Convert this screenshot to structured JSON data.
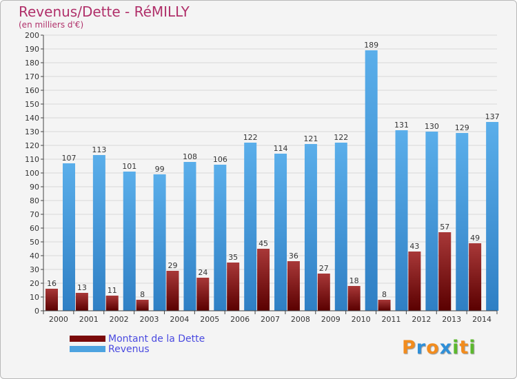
{
  "header": {
    "title": "Revenus/Dette - RéMILLY",
    "subtitle": "(en milliers d'€)"
  },
  "legend": {
    "items": [
      {
        "label": "Montant de la Dette",
        "color": "#7a0a0a"
      },
      {
        "label": "Revenus",
        "color": "#4da3e0"
      }
    ]
  },
  "logo": {
    "letters": [
      "P",
      "r",
      "o",
      "x",
      "i",
      "t",
      "i"
    ],
    "colors": [
      "#f28c1e",
      "#2f8fd8",
      "#f28c1e",
      "#2f8fd8",
      "#5cb82e",
      "#f28c1e",
      "#5cb82e"
    ]
  },
  "chart_data": {
    "type": "bar",
    "title": "Revenus/Dette - RéMILLY",
    "subtitle": "(en milliers d'€)",
    "categories": [
      "2000",
      "2001",
      "2002",
      "2003",
      "2004",
      "2005",
      "2006",
      "2007",
      "2008",
      "2009",
      "2010",
      "2011",
      "2012",
      "2013",
      "2014"
    ],
    "series": [
      {
        "name": "Montant de la Dette",
        "color": "#7a0a0a",
        "values": [
          16,
          13,
          11,
          8,
          29,
          24,
          35,
          45,
          36,
          27,
          18,
          8,
          43,
          57,
          49
        ]
      },
      {
        "name": "Revenus",
        "color": "#4da3e0",
        "values": [
          107,
          113,
          101,
          99,
          108,
          106,
          122,
          114,
          121,
          122,
          189,
          131,
          130,
          129,
          137
        ]
      }
    ],
    "ylim": [
      0,
      200
    ],
    "ytick_step": 10,
    "grid": true,
    "legend_position": "bottom-left"
  }
}
